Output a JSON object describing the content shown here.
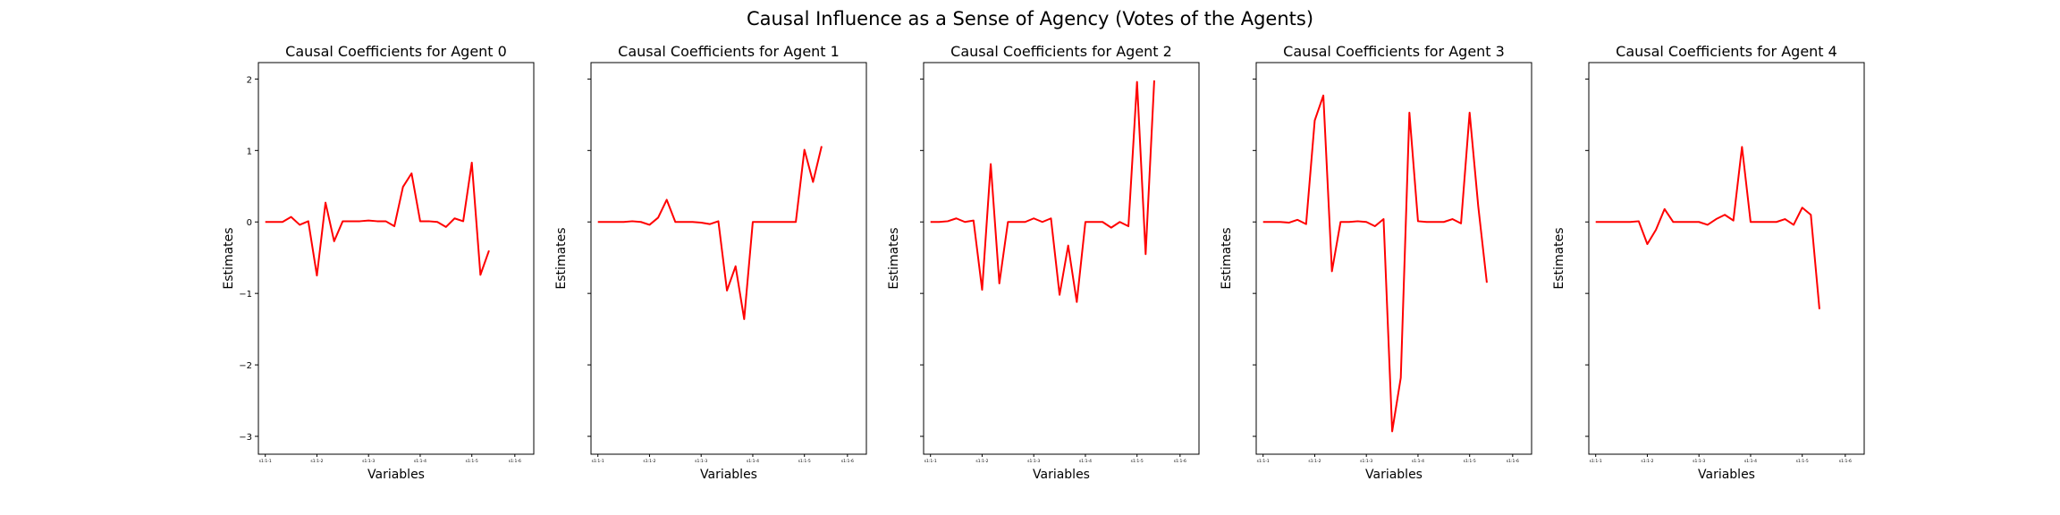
{
  "suptitle": "Causal Influence as a Sense of Agency (Votes of the Agents)",
  "chart_data": [
    {
      "type": "line",
      "title": "Causal Coefficients for Agent 0",
      "xlabel": "Variables",
      "ylabel": "Estimates",
      "ylim": [
        -3.25,
        2.23
      ],
      "yticks": [
        2,
        1,
        0,
        -1,
        -2,
        -3
      ],
      "ytick_labels": [
        "2",
        "1",
        "0",
        "−1",
        "−2",
        "−3"
      ],
      "xtick_positions": [
        0,
        6,
        12,
        18,
        24,
        29
      ],
      "xtick_labels": [
        "s1:1-1",
        "s1:1-2",
        "s1:1-3",
        "s1:1-4",
        "s1:1-5",
        "s1:1-6"
      ],
      "xlim": [
        -0.8,
        31.2
      ],
      "series": [
        {
          "color": "#ff0000",
          "values": [
            0,
            0,
            0,
            0.07,
            -0.04,
            0.01,
            -0.75,
            0.27,
            -0.27,
            0.01,
            0.01,
            0.01,
            0.02,
            0.01,
            0.01,
            -0.06,
            0.49,
            0.68,
            0.01,
            0.01,
            0,
            -0.07,
            0.05,
            0.01,
            0.83,
            -0.74,
            -0.4
          ]
        }
      ]
    },
    {
      "type": "line",
      "title": "Causal Coefficients for Agent 1",
      "xlabel": "Variables",
      "ylabel": "Estimates",
      "ylim": [
        -3.25,
        2.23
      ],
      "yticks": [
        2,
        1,
        0,
        -1,
        -2,
        -3
      ],
      "ytick_labels": [
        "",
        "",
        "",
        "",
        "",
        ""
      ],
      "xtick_positions": [
        0,
        6,
        12,
        18,
        24,
        29
      ],
      "xtick_labels": [
        "s1:1-1",
        "s1:1-2",
        "s1:1-3",
        "s1:1-4",
        "s1:1-5",
        "s1:1-6"
      ],
      "xlim": [
        -0.8,
        31.2
      ],
      "series": [
        {
          "color": "#ff0000",
          "values": [
            0,
            0,
            0,
            0,
            0.01,
            0,
            -0.04,
            0.06,
            0.31,
            0,
            0,
            0,
            -0.01,
            -0.03,
            0.01,
            -0.96,
            -0.62,
            -1.36,
            0,
            0,
            0,
            0,
            0,
            0,
            1.01,
            0.56,
            1.06
          ]
        }
      ]
    },
    {
      "type": "line",
      "title": "Causal Coefficients for Agent 2",
      "xlabel": "Variables",
      "ylabel": "Estimates",
      "ylim": [
        -3.25,
        2.23
      ],
      "yticks": [
        2,
        1,
        0,
        -1,
        -2,
        -3
      ],
      "ytick_labels": [
        "",
        "",
        "",
        "",
        "",
        ""
      ],
      "xtick_positions": [
        0,
        6,
        12,
        18,
        24,
        29
      ],
      "xtick_labels": [
        "s1:1-1",
        "s1:1-2",
        "s1:1-3",
        "s1:1-4",
        "s1:1-5",
        "s1:1-6"
      ],
      "xlim": [
        -0.8,
        31.2
      ],
      "series": [
        {
          "color": "#ff0000",
          "values": [
            0,
            0,
            0.01,
            0.05,
            0,
            0.02,
            -0.95,
            0.81,
            -0.86,
            0,
            0,
            0,
            0.05,
            0,
            0.05,
            -1.02,
            -0.33,
            -1.12,
            0,
            0,
            0,
            -0.08,
            0,
            -0.06,
            1.96,
            -0.45,
            1.98
          ]
        }
      ]
    },
    {
      "type": "line",
      "title": "Causal Coefficients for Agent 3",
      "xlabel": "Variables",
      "ylabel": "Estimates",
      "ylim": [
        -3.25,
        2.23
      ],
      "yticks": [
        2,
        1,
        0,
        -1,
        -2,
        -3
      ],
      "ytick_labels": [
        "",
        "",
        "",
        "",
        "",
        ""
      ],
      "xtick_positions": [
        0,
        6,
        12,
        18,
        24,
        29
      ],
      "xtick_labels": [
        "s1:1-1",
        "s1:1-2",
        "s1:1-3",
        "s1:1-4",
        "s1:1-5",
        "s1:1-6"
      ],
      "xlim": [
        -0.8,
        31.2
      ],
      "series": [
        {
          "color": "#ff0000",
          "values": [
            0,
            0,
            0,
            -0.01,
            0.03,
            -0.03,
            1.42,
            1.77,
            -0.69,
            0,
            0,
            0.01,
            0,
            -0.06,
            0.04,
            -2.93,
            -2.18,
            1.53,
            0.01,
            0,
            0,
            0,
            0.04,
            -0.02,
            1.53,
            0.22,
            -0.85
          ]
        }
      ]
    },
    {
      "type": "line",
      "title": "Causal Coefficients for Agent 4",
      "xlabel": "Variables",
      "ylabel": "Estimates",
      "ylim": [
        -3.25,
        2.23
      ],
      "yticks": [
        2,
        1,
        0,
        -1,
        -2,
        -3
      ],
      "ytick_labels": [
        "",
        "",
        "",
        "",
        "",
        ""
      ],
      "xtick_positions": [
        0,
        6,
        12,
        18,
        24,
        29
      ],
      "xtick_labels": [
        "s1:1-1",
        "s1:1-2",
        "s1:1-3",
        "s1:1-4",
        "s1:1-5",
        "s1:1-6"
      ],
      "xlim": [
        -0.8,
        31.2
      ],
      "series": [
        {
          "color": "#ff0000",
          "values": [
            0,
            0,
            0,
            0,
            0,
            0.01,
            -0.31,
            -0.11,
            0.18,
            0,
            0,
            0,
            0,
            -0.04,
            0.04,
            0.1,
            0.02,
            1.05,
            0,
            0,
            0,
            0,
            0.04,
            -0.04,
            0.2,
            0.1,
            -1.22
          ]
        }
      ]
    }
  ]
}
